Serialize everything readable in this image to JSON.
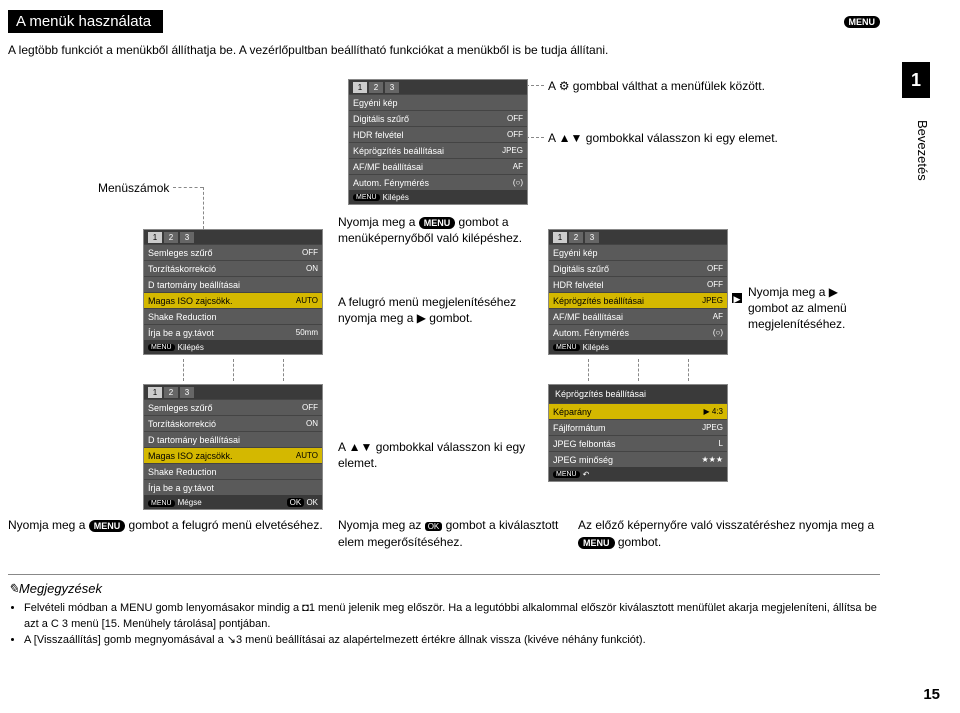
{
  "title": "A menük használata",
  "menu_badge": "MENU",
  "intro": "A legtöbb funkciót a menükből állíthatja be. A vezérlőpultban beállítható funkciókat a menükből is be tudja állítani.",
  "tab": "1",
  "vtext": "Bevezetés",
  "pagenum": "15",
  "labels": {
    "menuszamok": "Menüszámok",
    "top_right1_pre": "A ",
    "top_right1_post": " gombbal válthat a menüfülek között.",
    "top_right2": "A ▲▼ gombokkal válasszon ki egy elemet.",
    "mid1_pre": "Nyomja meg a ",
    "mid1_post": " gombot a menüképernyőből való kilépéshez.",
    "mid2": "A felugró menü megjelenítéséhez nyomja meg a ▶ gombot.",
    "right_mid": "Nyomja meg a ▶ gombot az almenü megjelenítéséhez.",
    "mid3": "A ▲▼ gombokkal válasszon ki egy elemet.",
    "bl_pre": "Nyomja meg a ",
    "bl_post": " gombot a felugró menü elvetéséhez.",
    "bm_pre": "Nyomja meg az ",
    "bm_post": " gombot a kiválasztott elem megerősítéséhez.",
    "br_pre": "Az előző képernyőre való visszatéréshez nyomja meg a ",
    "br_post": " gombot."
  },
  "notes_title": "Megjegyzések",
  "notes": [
    "Felvételi módban a MENU gomb lenyomásakor mindig a ◘1 menü jelenik meg először. Ha a legutóbbi alkalommal először kiválasztott menüfület akarja megjeleníteni, állítsa be azt a C 3 menü [15. Menühely tárolása] pontjában.",
    "A [Visszaállítás] gomb megnyomásával a ↘3 menü beállításai az alapértelmezett értékre állnak vissza (kivéve néhány funkciót)."
  ],
  "menu1": {
    "tabs": [
      "1",
      "2",
      "3"
    ],
    "items": [
      {
        "l": "Semleges szűrő",
        "r": "OFF"
      },
      {
        "l": "Torzításkorrekció",
        "r": "ON"
      },
      {
        "l": "D tartomány beállításai",
        "r": ""
      },
      {
        "l": "Magas ISO zajcsökk.",
        "r": "AUTO",
        "sel": true
      },
      {
        "l": "Shake Reduction",
        "r": ""
      },
      {
        "l": "Írja be a gy.távot",
        "r": "50mm"
      }
    ],
    "foot": "Kilépés"
  },
  "menu2": {
    "tabs": [
      "1",
      "2",
      "3"
    ],
    "items": [
      {
        "l": "Egyéni kép",
        "r": ""
      },
      {
        "l": "Digitális szűrő",
        "r": "OFF"
      },
      {
        "l": "HDR felvétel",
        "r": "OFF"
      },
      {
        "l": "Képrögzítés beállításai",
        "r": "JPEG"
      },
      {
        "l": "AF/MF beállításai",
        "r": "AF"
      },
      {
        "l": "Autom. Fénymérés",
        "r": "(○)"
      }
    ],
    "foot": "Kilépés"
  },
  "menu3": {
    "tabs": [
      "1",
      "2",
      "3"
    ],
    "items": [
      {
        "l": "Egyéni kép",
        "r": ""
      },
      {
        "l": "Digitális szűrő",
        "r": "OFF"
      },
      {
        "l": "HDR felvétel",
        "r": "OFF"
      },
      {
        "l": "Képrögzítés beállításai",
        "r": "JPEG",
        "sel": true
      },
      {
        "l": "AF/MF beállításai",
        "r": "AF"
      },
      {
        "l": "Autom. Fénymérés",
        "r": "(○)"
      }
    ],
    "foot": "Kilépés"
  },
  "menu4": {
    "tabs": [
      "1",
      "2",
      "3"
    ],
    "items": [
      {
        "l": "Semleges szűrő",
        "r": "OFF"
      },
      {
        "l": "Torzításkorrekció",
        "r": "ON"
      },
      {
        "l": "D tartomány beállításai",
        "r": ""
      },
      {
        "l": "Magas ISO zajcsökk.",
        "r": "AUTO",
        "sel": true
      },
      {
        "l": "Shake Reduction",
        "r": ""
      },
      {
        "l": "Írja be a gy.távot",
        "r": ""
      }
    ],
    "foot": "Mégse",
    "ok": "OK"
  },
  "menu5": {
    "items": [
      {
        "l": "Képrögzítés beállításai",
        "r": ""
      },
      {
        "l": "Képarány",
        "r": "▶ 4:3",
        "sel": true
      },
      {
        "l": "Fájlformátum",
        "r": "JPEG"
      },
      {
        "l": "JPEG felbontás",
        "r": "L"
      },
      {
        "l": "JPEG minőség",
        "r": "★★★"
      }
    ],
    "foot": ""
  }
}
